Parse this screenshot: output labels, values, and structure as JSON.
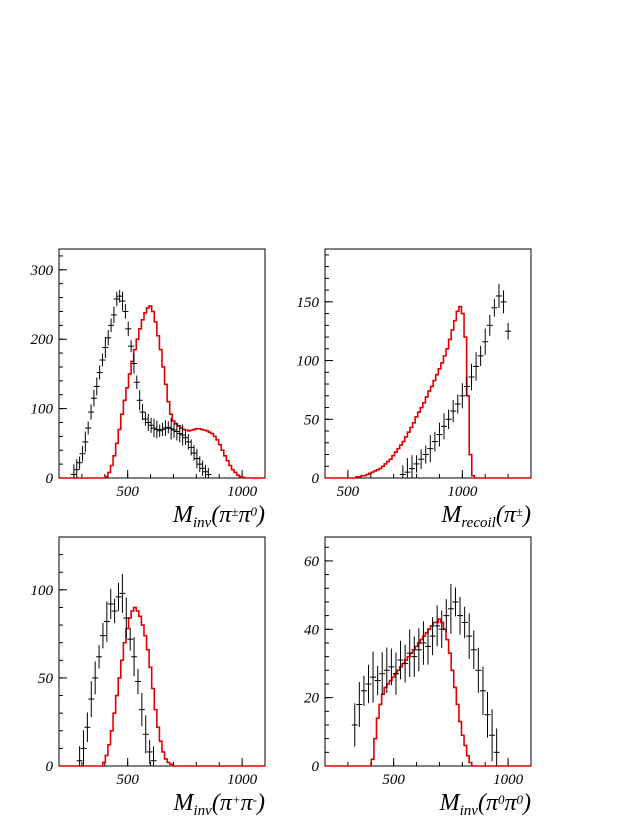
{
  "colors": {
    "data": "#000000",
    "model": "#e00000",
    "axes": "#000000"
  },
  "chart_data": [
    {
      "type": "line",
      "xlim": [
        200,
        1100
      ],
      "ylim": [
        0,
        330
      ],
      "xticks": [
        "500",
        "1000"
      ],
      "yticks": [
        "0",
        "100",
        "200",
        "300"
      ],
      "xlabel": {
        "main": "M",
        "sub": "inv",
        "tail": "(π",
        "sup1": "±",
        "mid": "π",
        "sup2": "0",
        "end": ")"
      },
      "model_y": [
        0,
        0,
        0,
        0,
        0,
        0,
        0,
        0,
        0,
        0,
        0,
        0,
        0,
        0,
        0,
        0,
        0,
        0,
        2,
        8,
        18,
        32,
        50,
        70,
        92,
        112,
        130,
        150,
        168,
        185,
        200,
        215,
        228,
        238,
        245,
        248,
        240,
        225,
        205,
        185,
        160,
        135,
        110,
        92,
        82,
        78,
        75,
        72,
        70,
        69,
        68,
        69,
        70,
        71,
        71,
        70,
        69,
        68,
        66,
        64,
        60,
        55,
        48,
        40,
        32,
        25,
        18,
        12,
        8,
        4,
        2,
        1,
        0,
        0,
        0,
        0,
        0,
        0,
        0,
        0
      ],
      "data_y": [
        5,
        12,
        22,
        35,
        52,
        72,
        95,
        115,
        132,
        152,
        170,
        188,
        202,
        220,
        235,
        258,
        262,
        255,
        240,
        215,
        190,
        165,
        138,
        112,
        95,
        85,
        80,
        76,
        72,
        70,
        68,
        70,
        72,
        73,
        71,
        69,
        67,
        64,
        62,
        58,
        52,
        44,
        36,
        28,
        20,
        14,
        9,
        5
      ],
      "data_x_start": 265,
      "data_x_step": 12.5,
      "data_err": 12
    },
    {
      "type": "line",
      "xlim": [
        400,
        1300
      ],
      "ylim": [
        0,
        195
      ],
      "xticks": [
        "500",
        "1000"
      ],
      "yticks": [
        "0",
        "50",
        "100",
        "150"
      ],
      "xlabel": {
        "main": "M",
        "sub": "recoil",
        "tail": "(π",
        "sup1": "±",
        "mid": "",
        "sup2": "",
        "end": ")"
      },
      "model_y": [
        0,
        0,
        0,
        0,
        0,
        0,
        0,
        0,
        0,
        0,
        0,
        0,
        1,
        1,
        2,
        2,
        3,
        4,
        5,
        6,
        7,
        8,
        10,
        12,
        14,
        16,
        19,
        22,
        25,
        28,
        31,
        35,
        39,
        43,
        47,
        52,
        56,
        60,
        64,
        69,
        74,
        78,
        83,
        88,
        93,
        98,
        104,
        110,
        118,
        126,
        134,
        142,
        146,
        140,
        120,
        70,
        20,
        2,
        0,
        0,
        0,
        0,
        0,
        0,
        0,
        0,
        0,
        0,
        0,
        0,
        0,
        0,
        0,
        0,
        0,
        0,
        0,
        0,
        0,
        0
      ],
      "data_y": [
        3,
        5,
        8,
        12,
        16,
        20,
        25,
        31,
        37,
        44,
        50,
        57,
        63,
        70,
        78,
        86,
        95,
        104,
        116,
        130,
        145,
        155,
        150,
        125
      ],
      "data_x_start": 740,
      "data_x_step": 20,
      "data_err": 10
    },
    {
      "type": "line",
      "xlim": [
        200,
        1100
      ],
      "ylim": [
        0,
        130
      ],
      "xticks": [
        "500",
        "1000"
      ],
      "yticks": [
        "0",
        "50",
        "100"
      ],
      "xlabel": {
        "main": "M",
        "sub": "inv",
        "tail": "(π",
        "sup1": "+",
        "mid": "π",
        "sup2": "-",
        "end": ")"
      },
      "model_y": [
        0,
        0,
        0,
        0,
        0,
        0,
        0,
        0,
        0,
        0,
        0,
        0,
        0,
        0,
        0,
        0,
        0,
        2,
        6,
        12,
        20,
        30,
        40,
        50,
        60,
        70,
        78,
        84,
        88,
        90,
        88,
        85,
        80,
        74,
        66,
        56,
        44,
        32,
        22,
        14,
        8,
        4,
        2,
        1,
        0,
        0,
        0,
        0,
        0,
        0,
        0,
        0,
        0,
        0,
        0,
        0,
        0,
        0,
        0,
        0,
        0,
        0,
        0,
        0,
        0,
        0,
        0,
        0,
        0,
        0,
        0,
        0,
        0,
        0,
        0,
        0,
        0,
        0,
        0,
        0
      ],
      "data_y": [
        3,
        10,
        22,
        38,
        50,
        62,
        74,
        82,
        92,
        88,
        96,
        98,
        84,
        72,
        62,
        48,
        32,
        18,
        8,
        3
      ],
      "data_x_start": 290,
      "data_x_step": 17,
      "data_err": 9
    },
    {
      "type": "line",
      "xlim": [
        200,
        1100
      ],
      "ylim": [
        0,
        67
      ],
      "xticks": [
        "500",
        "1000"
      ],
      "yticks": [
        "0",
        "20",
        "40",
        "60"
      ],
      "xlabel": {
        "main": "M",
        "sub": "inv",
        "tail": "(π",
        "sup1": "0",
        "mid": "π",
        "sup2": "0",
        "end": ")"
      },
      "model_y": [
        0,
        0,
        0,
        0,
        0,
        0,
        0,
        0,
        0,
        0,
        0,
        0,
        0,
        0,
        0,
        0,
        0,
        0,
        2,
        8,
        14,
        18,
        21,
        23,
        24,
        25,
        26,
        27,
        28,
        29,
        30,
        31,
        32,
        33,
        34,
        35,
        36,
        37,
        38,
        39,
        40,
        41,
        42,
        42,
        43,
        42,
        40,
        37,
        33,
        28,
        23,
        18,
        13,
        9,
        6,
        3,
        1,
        0,
        0,
        0,
        0,
        0,
        0,
        0,
        0,
        0,
        0,
        0,
        0,
        0,
        0,
        0,
        0,
        0,
        0,
        0,
        0,
        0,
        0,
        0
      ],
      "data_y": [
        12,
        18,
        22,
        24,
        26,
        25,
        27,
        28,
        29,
        27,
        31,
        30,
        33,
        32,
        34,
        36,
        35,
        38,
        41,
        40,
        44,
        46,
        48,
        44,
        42,
        38,
        34,
        28,
        22,
        15,
        9,
        4
      ],
      "data_x_start": 330,
      "data_x_step": 20,
      "data_err": 6
    }
  ]
}
